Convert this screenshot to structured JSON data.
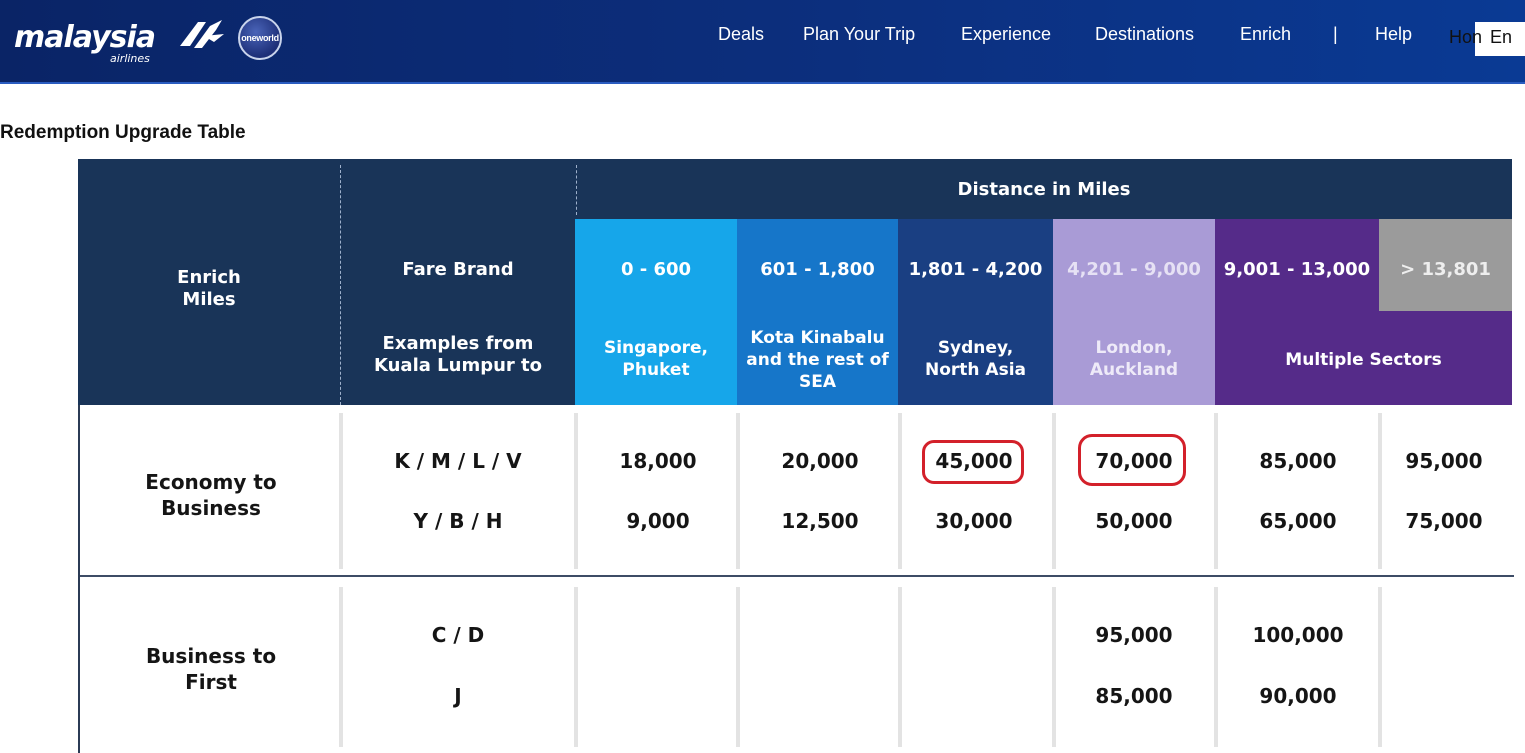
{
  "header": {
    "brand": "malaysia",
    "brand_sub": "airlines",
    "alliance": "oneworld",
    "nav": [
      "Deals",
      "Plan Your Trip",
      "Experience",
      "Destinations",
      "Enrich"
    ],
    "help": "Help",
    "home": "Hon",
    "lang": "En"
  },
  "page": {
    "heading": "Redemption Upgrade Table"
  },
  "table": {
    "col_enrich": "Enrich\nMiles",
    "col_fare_brand": "Fare Brand",
    "col_examples": "Examples from\nKuala Lumpur to",
    "distance_title": "Distance in Miles",
    "bands": [
      {
        "range": "0 - 600",
        "example": "Singapore,\nPhuket",
        "color": "#16a6ea"
      },
      {
        "range": "601 - 1,800",
        "example": "Kota Kinabalu\nand the rest of\nSEA",
        "color": "#1676c9"
      },
      {
        "range": "1,801 - 4,200",
        "example": "Sydney,\nNorth Asia",
        "color": "#1a3f82"
      },
      {
        "range": "4,201 - 9,000",
        "example": "London,\nAuckland",
        "color": "#a99bd6"
      },
      {
        "range": "9,001 - 13,000",
        "example": "Multiple Sectors",
        "color": "#552b89"
      },
      {
        "range": "> 13,801",
        "example": "",
        "color": "#9b9b9b"
      }
    ],
    "rows": [
      {
        "label": "Economy to\nBusiness",
        "fares": [
          {
            "code": "K / M / L / V",
            "values": [
              "18,000",
              "20,000",
              "45,000",
              "70,000",
              "85,000",
              "95,000"
            ]
          },
          {
            "code": "Y / B / H",
            "values": [
              "9,000",
              "12,500",
              "30,000",
              "50,000",
              "65,000",
              "75,000"
            ]
          }
        ]
      },
      {
        "label": "Business to\nFirst",
        "fares": [
          {
            "code": "C / D",
            "values": [
              "",
              "",
              "",
              "95,000",
              "100,000",
              ""
            ]
          },
          {
            "code": "J",
            "values": [
              "",
              "",
              "",
              "85,000",
              "90,000",
              ""
            ]
          }
        ]
      }
    ],
    "highlight_color": "#d3202a"
  }
}
